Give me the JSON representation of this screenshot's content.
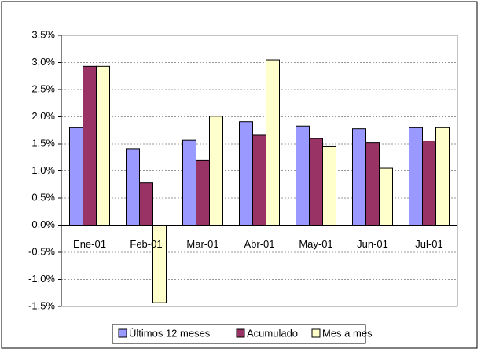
{
  "chart_data": {
    "type": "bar",
    "categories": [
      "Ene-01",
      "Feb-01",
      "Mar-01",
      "Abr-01",
      "May-01",
      "Jun-01",
      "Jul-01"
    ],
    "series": [
      {
        "name": "Últimos 12 meses",
        "color": "#9999ff",
        "values": [
          1.8,
          1.4,
          1.57,
          1.91,
          1.83,
          1.78,
          1.8
        ]
      },
      {
        "name": "Acumulado",
        "color": "#993366",
        "values": [
          2.93,
          0.78,
          1.19,
          1.66,
          1.6,
          1.52,
          1.55
        ]
      },
      {
        "name": "Mes a mes",
        "color": "#ffffcc",
        "values": [
          2.93,
          -1.43,
          2.01,
          3.05,
          1.45,
          1.05,
          1.8
        ]
      }
    ],
    "ylim": [
      -1.5,
      3.5
    ],
    "yticks": [
      {
        "value": -1.5,
        "label": "-1.5%"
      },
      {
        "value": -1.0,
        "label": "-1.0%"
      },
      {
        "value": -0.5,
        "label": "-0.5%"
      },
      {
        "value": 0,
        "label": "0.0%"
      },
      {
        "value": 0.5,
        "label": "0.5%"
      },
      {
        "value": 1.0,
        "label": "1.0%"
      },
      {
        "value": 1.5,
        "label": "1.5%"
      },
      {
        "value": 2.0,
        "label": "2.0%"
      },
      {
        "value": 2.5,
        "label": "2.5%"
      },
      {
        "value": 3.0,
        "label": "3.0%"
      },
      {
        "value": 3.5,
        "label": "3.5%"
      }
    ],
    "grid": true,
    "legend": "bottom"
  }
}
